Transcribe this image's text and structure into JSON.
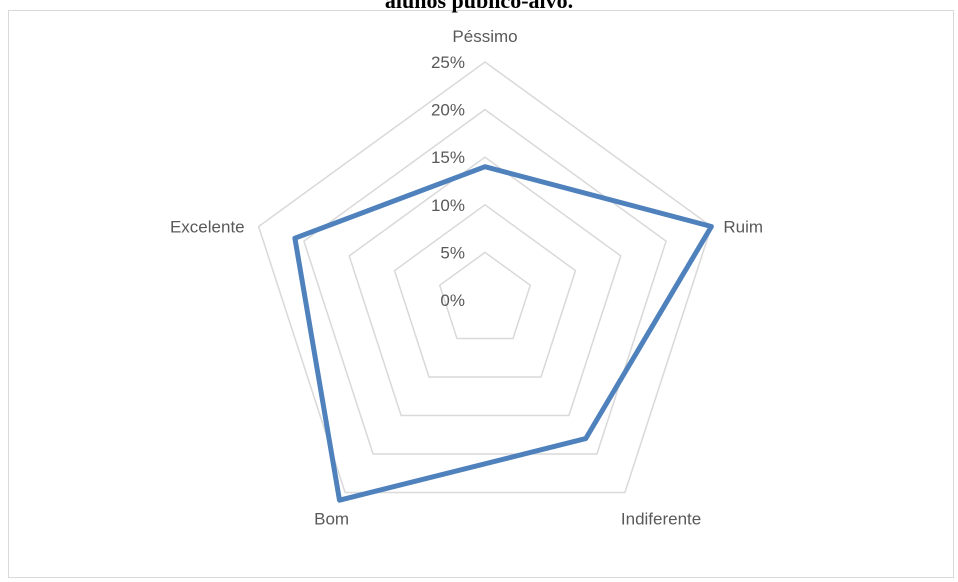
{
  "chart_data": {
    "type": "radar",
    "title": "alunos público-alvo.",
    "categories": [
      "Péssimo",
      "Ruim",
      "Indiferente",
      "Bom",
      "Excelente"
    ],
    "ticks": [
      "0%",
      "5%",
      "10%",
      "15%",
      "20%",
      "25%"
    ],
    "rlim": [
      0,
      25
    ],
    "grid": true,
    "series": [
      {
        "values": [
          14,
          25,
          18,
          26,
          21
        ],
        "color": "#4f81bd"
      }
    ],
    "colors": {
      "grid": "#d9d9d9",
      "text": "#595959",
      "line": "#4f81bd"
    }
  }
}
